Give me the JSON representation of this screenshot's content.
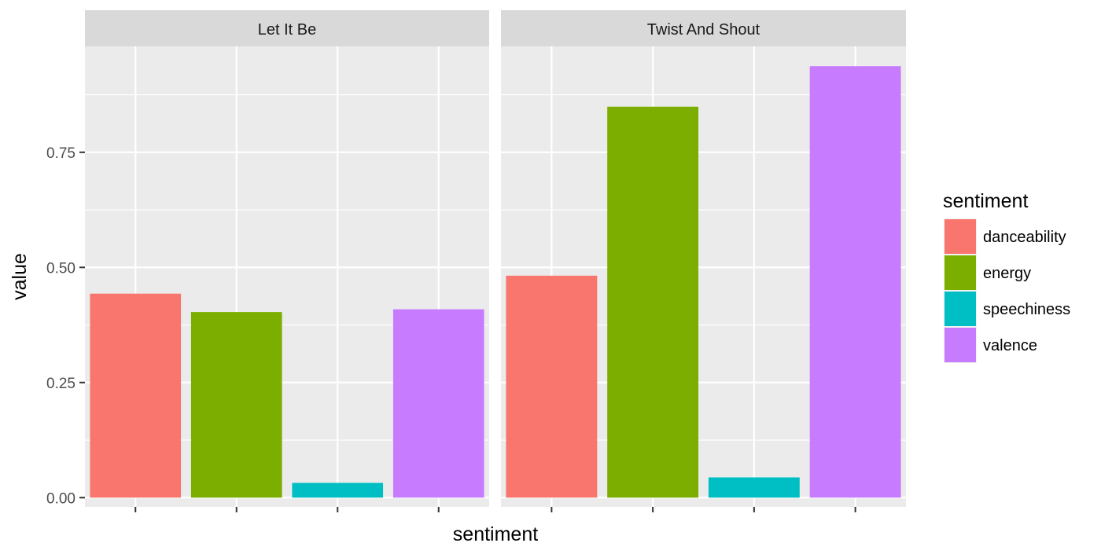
{
  "chart_data": {
    "type": "bar",
    "facet_variable": "track",
    "facets": [
      "Let It Be",
      "Twist And Shout"
    ],
    "categories": [
      "danceability",
      "energy",
      "speechiness",
      "valence"
    ],
    "series": [
      {
        "name": "Let It Be",
        "values": [
          0.443,
          0.403,
          0.032,
          0.409
        ]
      },
      {
        "name": "Twist And Shout",
        "values": [
          0.482,
          0.849,
          0.044,
          0.937
        ]
      }
    ],
    "colors": {
      "danceability": "#F8766D",
      "energy": "#7CAE00",
      "speechiness": "#00BFC4",
      "valence": "#C77CFF"
    },
    "xlabel": "sentiment",
    "ylabel": "value",
    "yticks": [
      0.0,
      0.25,
      0.5,
      0.75
    ],
    "ytick_labels": [
      "0.00",
      "0.25",
      "0.50",
      "0.75"
    ],
    "ylim": [
      -0.02,
      0.98
    ],
    "grid": true,
    "x_tick_labels_visible": false,
    "legend": {
      "title": "sentiment",
      "entries": [
        "danceability",
        "energy",
        "speechiness",
        "valence"
      ],
      "position": "right"
    },
    "theme": {
      "panel_background": "#EBEBEB",
      "strip_background": "#D9D9D9",
      "grid_color": "#FFFFFF",
      "text_color": "#000000",
      "tick_label_color": "#4D4D4D",
      "tick_color": "#333333"
    }
  }
}
